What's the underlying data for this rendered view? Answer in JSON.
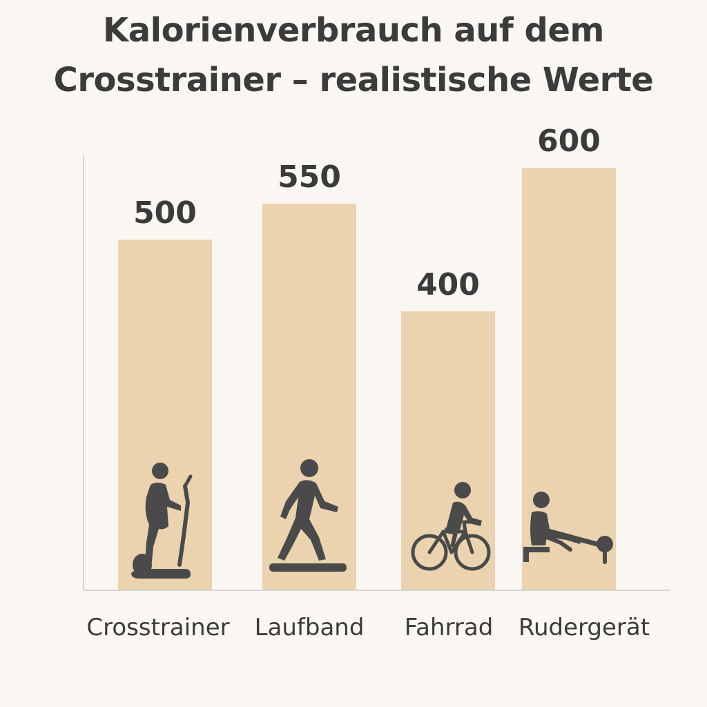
{
  "chart_data": {
    "type": "bar",
    "title": "Kalorienverbrauch auf dem Crosstrainer – realistische Werte",
    "title_lines": [
      "Kalorienverbrauch auf dem",
      "Crosstrainer – realistische Werte"
    ],
    "categories": [
      "Crosstrainer",
      "Laufband",
      "Fahrrad",
      "Rudergerät"
    ],
    "values": [
      500,
      550,
      400,
      600
    ],
    "icons": [
      "elliptical-trainer-icon",
      "treadmill-walker-icon",
      "cyclist-icon",
      "rowing-machine-icon"
    ],
    "xlabel": "",
    "ylabel": "",
    "grid": false,
    "legend": "none",
    "colors": {
      "bar": "#ebd3af",
      "axis": "#d6d3cf",
      "text": "#3b3b3b",
      "icon": "#4a4a4a",
      "background": "#faf7f2"
    }
  }
}
